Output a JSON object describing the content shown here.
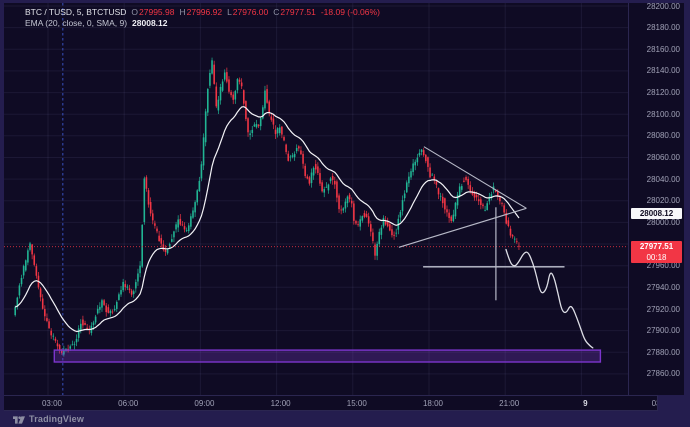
{
  "legend": {
    "symbol": {
      "title": "BTC / TUSD, 5, BTCTUSD",
      "o_label": "O",
      "open": "27995.98",
      "h_label": "H",
      "high": "27996.92",
      "l_label": "L",
      "low": "27976.00",
      "c_label": "C",
      "close": "27977.51",
      "change": "-18.09 (-0.06%)"
    },
    "ema": {
      "name": "EMA (20, close, 0, SMA, 9)",
      "value": "28008.12"
    }
  },
  "price_axis": {
    "ema_label": "28008.12",
    "last_price": "27977.51",
    "countdown": "00:18"
  },
  "footer": {
    "brand": "TradingView"
  },
  "chart_data": {
    "type": "candlestick",
    "symbol": "BTC / TUSD",
    "interval_minutes": 5,
    "title": "BTC / TUSD, 5, BTCTUSD",
    "last_bar": {
      "open": 27995.98,
      "high": 27996.92,
      "low": 27976.0,
      "close": 27977.51,
      "change": -18.09,
      "change_pct": -0.06
    },
    "ema_indicator": {
      "length": 20,
      "source": "close",
      "offset": 0,
      "smoothing": "SMA",
      "smoothing_length": 9,
      "value": 28008.12
    },
    "current_price": 27977.51,
    "y_axis": {
      "min": 27840,
      "max": 28203,
      "tick_step": 20,
      "tick_labels": [
        "28200.00",
        "28180.00",
        "28160.00",
        "28140.00",
        "28120.00",
        "28100.00",
        "28080.00",
        "28060.00",
        "28040.00",
        "28020.00",
        "28000.00",
        "27980.00",
        "27960.00",
        "27940.00",
        "27920.00",
        "27900.00",
        "27880.00",
        "27860.00"
      ]
    },
    "x_axis": {
      "start_minutes": 100,
      "end_minutes": 1330,
      "ticks": [
        {
          "t": 180,
          "label": "03:00",
          "bold": false
        },
        {
          "t": 360,
          "label": "06:00",
          "bold": false
        },
        {
          "t": 540,
          "label": "09:00",
          "bold": false
        },
        {
          "t": 720,
          "label": "12:00",
          "bold": false
        },
        {
          "t": 900,
          "label": "15:00",
          "bold": false
        },
        {
          "t": 1080,
          "label": "18:00",
          "bold": false
        },
        {
          "t": 1260,
          "label": "21:00",
          "bold": false
        },
        {
          "t": 1440,
          "label": "9",
          "bold": true
        },
        {
          "t": 1620,
          "label": "03:00",
          "bold": false
        }
      ]
    },
    "bar_minutes": 5,
    "price_path": [
      [
        100,
        27915
      ],
      [
        120,
        27950
      ],
      [
        140,
        27980
      ],
      [
        155,
        27950
      ],
      [
        170,
        27920
      ],
      [
        185,
        27900
      ],
      [
        200,
        27890
      ],
      [
        215,
        27880
      ],
      [
        230,
        27883
      ],
      [
        245,
        27888
      ],
      [
        260,
        27908
      ],
      [
        280,
        27900
      ],
      [
        310,
        27928
      ],
      [
        325,
        27915
      ],
      [
        340,
        27922
      ],
      [
        360,
        27945
      ],
      [
        380,
        27932
      ],
      [
        400,
        27958
      ],
      [
        410,
        28042
      ],
      [
        420,
        28018
      ],
      [
        430,
        28000
      ],
      [
        445,
        27984
      ],
      [
        460,
        27972
      ],
      [
        480,
        27992
      ],
      [
        490,
        28002
      ],
      [
        510,
        27992
      ],
      [
        530,
        28018
      ],
      [
        545,
        28052
      ],
      [
        560,
        28125
      ],
      [
        570,
        28148
      ],
      [
        580,
        28105
      ],
      [
        590,
        28124
      ],
      [
        600,
        28140
      ],
      [
        610,
        28120
      ],
      [
        620,
        28112
      ],
      [
        630,
        28134
      ],
      [
        640,
        28124
      ],
      [
        650,
        28096
      ],
      [
        655,
        28082
      ],
      [
        670,
        28090
      ],
      [
        680,
        28088
      ],
      [
        690,
        28104
      ],
      [
        695,
        28124
      ],
      [
        705,
        28100
      ],
      [
        720,
        28082
      ],
      [
        730,
        28088
      ],
      [
        740,
        28074
      ],
      [
        750,
        28058
      ],
      [
        760,
        28060
      ],
      [
        770,
        28070
      ],
      [
        780,
        28062
      ],
      [
        790,
        28042
      ],
      [
        800,
        28038
      ],
      [
        810,
        28052
      ],
      [
        820,
        28048
      ],
      [
        830,
        28028
      ],
      [
        840,
        28032
      ],
      [
        850,
        28042
      ],
      [
        860,
        28036
      ],
      [
        870,
        28012
      ],
      [
        880,
        28014
      ],
      [
        890,
        28024
      ],
      [
        900,
        28018
      ],
      [
        905,
        28002
      ],
      [
        915,
        27998
      ],
      [
        925,
        28008
      ],
      [
        935,
        28006
      ],
      [
        945,
        27992
      ],
      [
        955,
        27970
      ],
      [
        965,
        27990
      ],
      [
        975,
        28004
      ],
      [
        985,
        27996
      ],
      [
        995,
        27988
      ],
      [
        1005,
        27992
      ],
      [
        1015,
        28012
      ],
      [
        1025,
        28028
      ],
      [
        1035,
        28044
      ],
      [
        1045,
        28052
      ],
      [
        1055,
        28062
      ],
      [
        1065,
        28068
      ],
      [
        1075,
        28058
      ],
      [
        1085,
        28044
      ],
      [
        1095,
        28040
      ],
      [
        1105,
        28026
      ],
      [
        1115,
        28020
      ],
      [
        1125,
        28008
      ],
      [
        1135,
        28000
      ],
      [
        1145,
        28016
      ],
      [
        1155,
        28032
      ],
      [
        1165,
        28040
      ],
      [
        1175,
        28036
      ],
      [
        1185,
        28026
      ],
      [
        1195,
        28022
      ],
      [
        1205,
        28016
      ],
      [
        1215,
        28010
      ],
      [
        1225,
        28024
      ],
      [
        1235,
        28032
      ],
      [
        1245,
        28024
      ],
      [
        1255,
        28016
      ],
      [
        1265,
        28000
      ],
      [
        1275,
        27990
      ],
      [
        1285,
        27984
      ],
      [
        1295,
        27977.5
      ]
    ],
    "overlays": {
      "descending_trendline": {
        "from": [
          1068,
          28070
        ],
        "to": [
          1310,
          28013
        ]
      },
      "ascending_trendline": {
        "from": [
          1009,
          27977
        ],
        "to": [
          1310,
          28013
        ]
      },
      "horizontal_line": {
        "price": 27959,
        "from_t": 1066,
        "to_t": 1400
      },
      "vertical_line": {
        "t": 1238,
        "from_price": 28014,
        "to_price": 27928
      },
      "forecast_curve": [
        [
          1262,
          27975
        ],
        [
          1271,
          27963
        ],
        [
          1281,
          27959
        ],
        [
          1290,
          27962
        ],
        [
          1304,
          27972
        ],
        [
          1314,
          27973
        ],
        [
          1326,
          27962
        ],
        [
          1335,
          27949
        ],
        [
          1342,
          27937
        ],
        [
          1349,
          27934
        ],
        [
          1359,
          27940
        ],
        [
          1366,
          27955
        ],
        [
          1375,
          27950
        ],
        [
          1385,
          27934
        ],
        [
          1394,
          27918
        ],
        [
          1404,
          27916
        ],
        [
          1413,
          27923
        ],
        [
          1420,
          27921
        ],
        [
          1430,
          27911
        ],
        [
          1439,
          27901
        ],
        [
          1448,
          27891
        ],
        [
          1460,
          27886
        ],
        [
          1467,
          27884
        ]
      ],
      "support_zone": {
        "from_t": 195,
        "to_t": 1485,
        "top_price": 27882,
        "bottom_price": 27871
      },
      "session_vline_t": 215,
      "last_price_line": 27977.51
    },
    "colors": {
      "up": "#21b594",
      "down": "#f23645",
      "ema": "#f3f3f7",
      "trendline": "#b7b9c7",
      "forecast": "#dcdde5",
      "zone_border": "#7c35cc",
      "zone_fill": "rgba(122,59,196,0.30)",
      "session_line": "#3f5bd8",
      "last_price_line": "#f23645",
      "grid": "rgba(151,144,204,0.10)",
      "axis_text": "#a0a1b6"
    }
  }
}
